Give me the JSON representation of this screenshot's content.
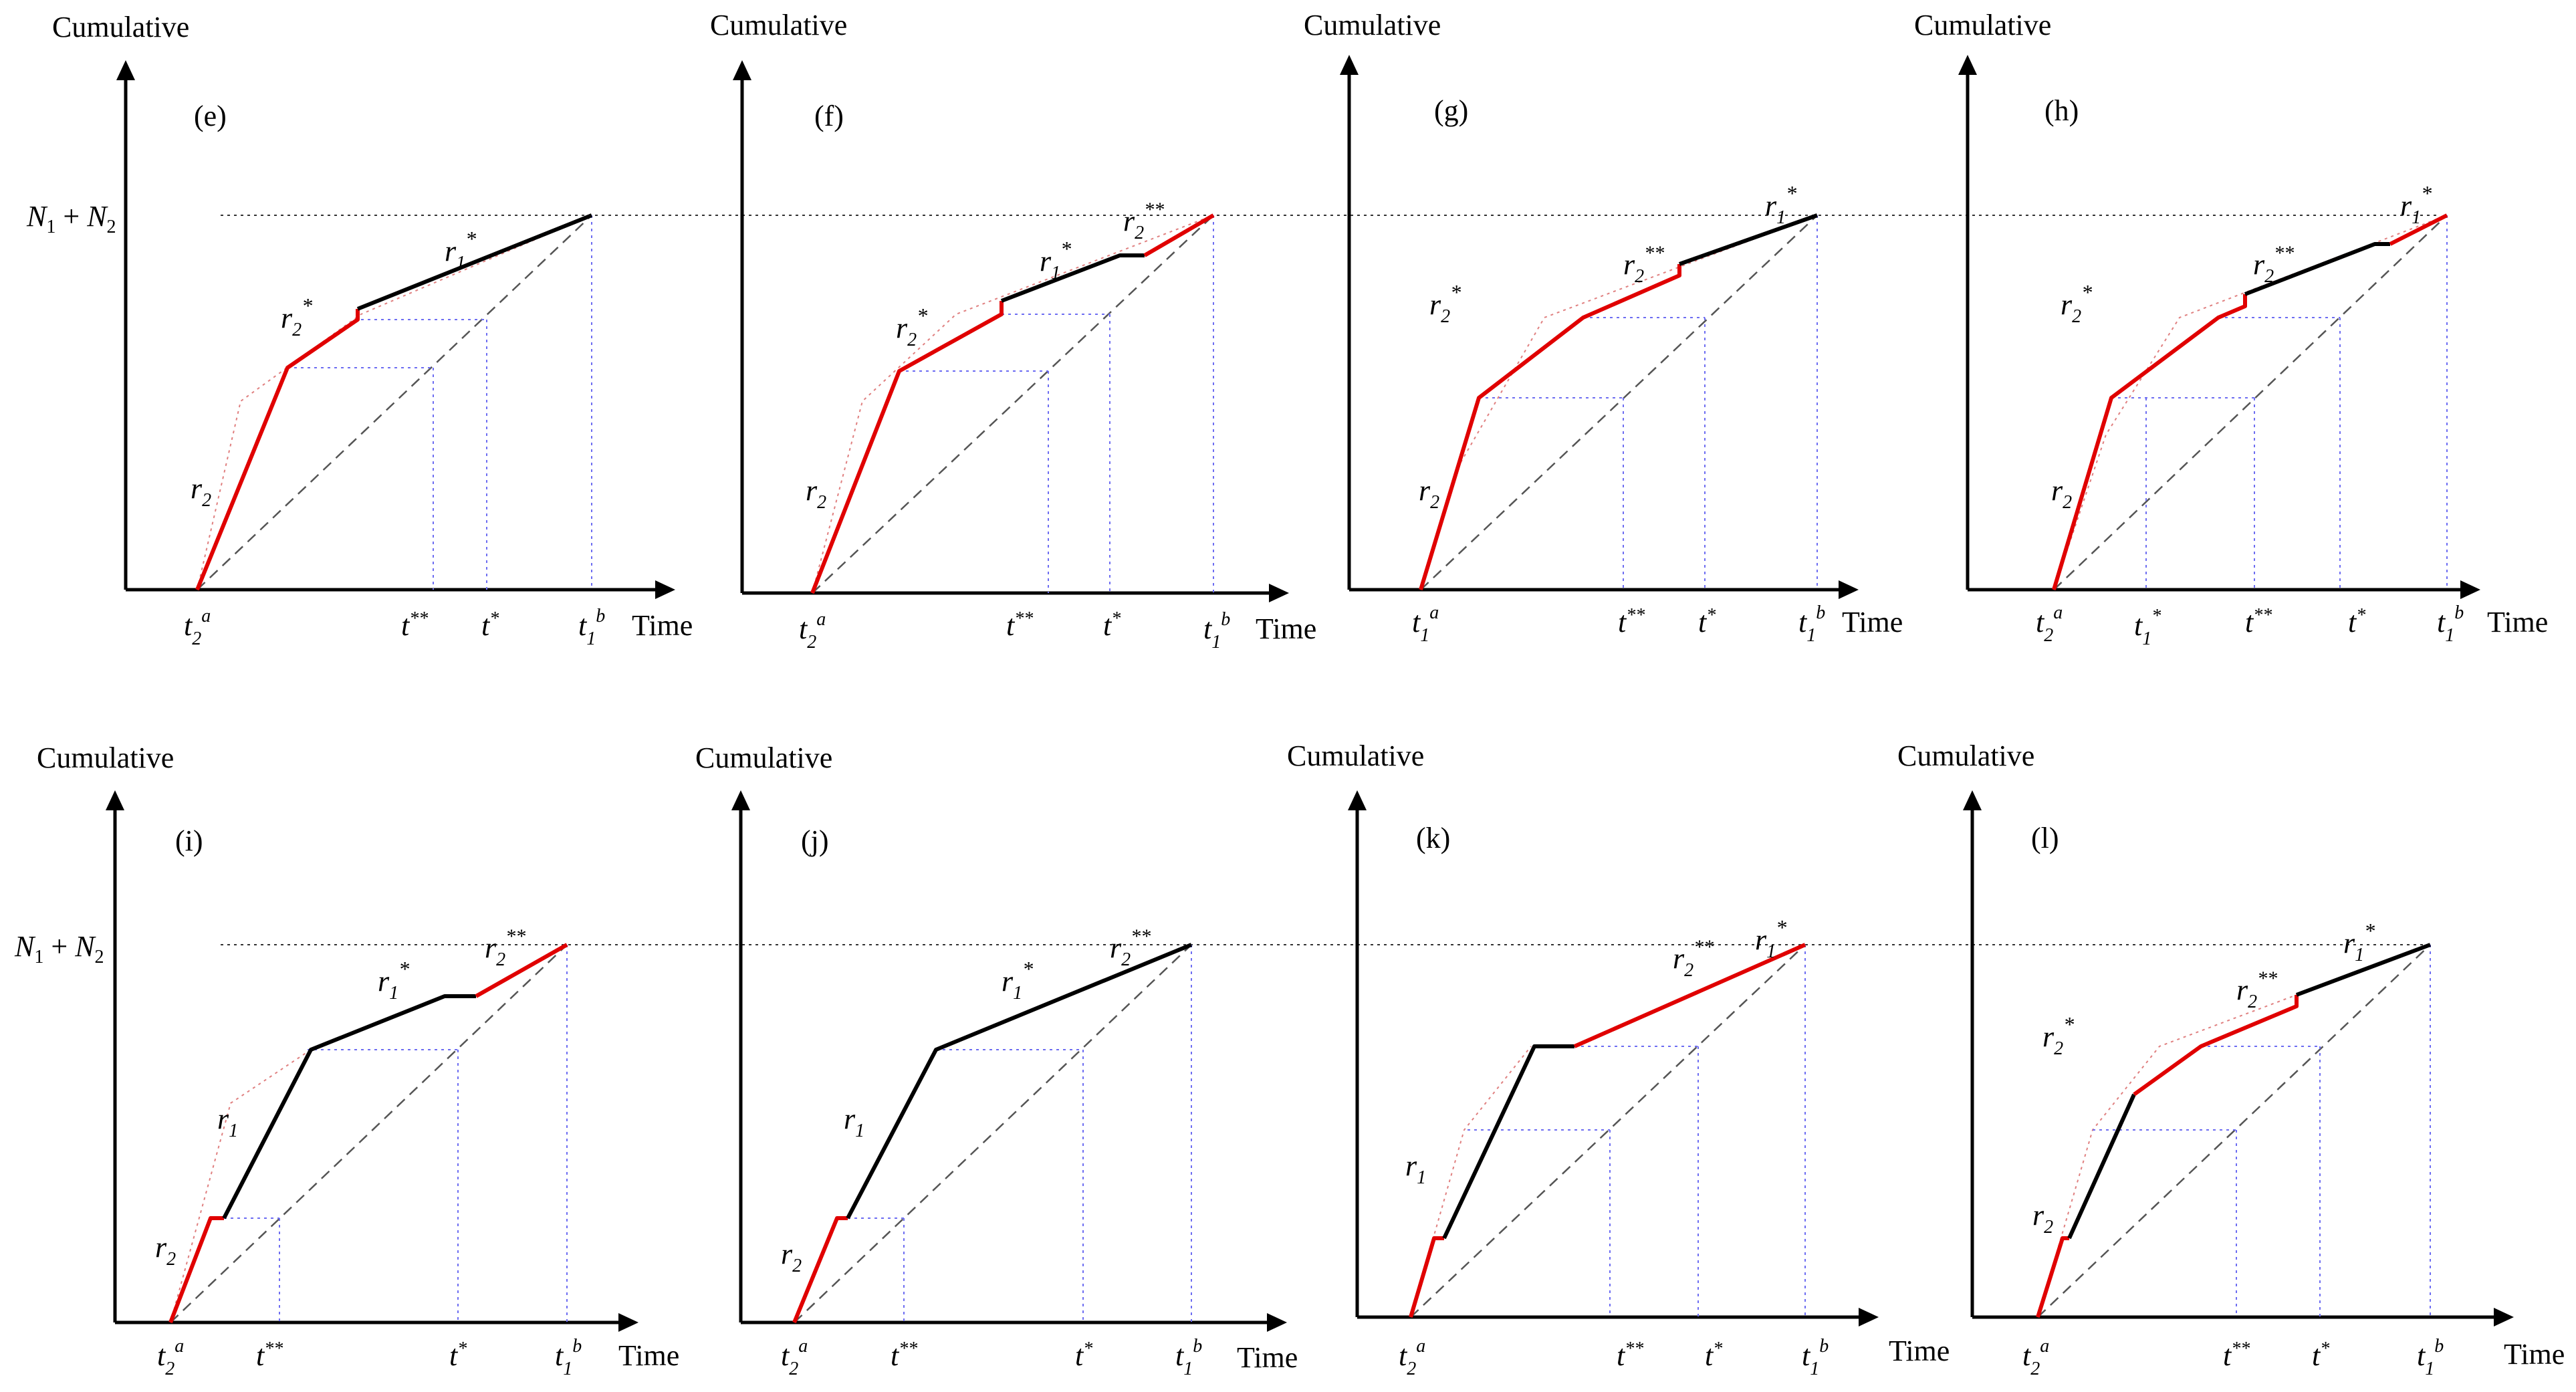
{
  "figure": {
    "y_axis_label": "Cumulative",
    "x_axis_label": "Time",
    "ref_level_label": "N1 + N2",
    "panels": [
      {
        "id": "(e)",
        "ticks": [
          "t2a",
          "t**",
          "t*",
          "t1b"
        ],
        "curves": [
          "r2",
          "r2*",
          "r1*"
        ]
      },
      {
        "id": "(f)",
        "ticks": [
          "t2a",
          "t**",
          "t*",
          "t1b"
        ],
        "curves": [
          "r2",
          "r2*",
          "r1*",
          "r2**"
        ]
      },
      {
        "id": "(g)",
        "ticks": [
          "t1a",
          "t**",
          "t*",
          "t1b"
        ],
        "curves": [
          "r2",
          "r2*",
          "r2**",
          "r1*"
        ]
      },
      {
        "id": "(h)",
        "ticks": [
          "t2a",
          "t1*",
          "t**",
          "t*",
          "t1b"
        ],
        "curves": [
          "r2",
          "r2*",
          "r2**",
          "r1*"
        ]
      },
      {
        "id": "(i)",
        "ticks": [
          "t2a",
          "t**",
          "t*",
          "t1b"
        ],
        "curves": [
          "r2",
          "r1",
          "r1*",
          "r2**"
        ]
      },
      {
        "id": "(j)",
        "ticks": [
          "t2a",
          "t**",
          "t*",
          "t1b"
        ],
        "curves": [
          "r2",
          "r1",
          "r1*",
          "r2**"
        ]
      },
      {
        "id": "(k)",
        "ticks": [
          "t2a",
          "t**",
          "t*",
          "t1b"
        ],
        "curves": [
          "r1",
          "r2**",
          "r1*"
        ]
      },
      {
        "id": "(l)",
        "ticks": [
          "t2a",
          "t**",
          "t*",
          "t1b"
        ],
        "curves": [
          "r2",
          "r2*",
          "r2**",
          "r1*"
        ]
      }
    ]
  }
}
